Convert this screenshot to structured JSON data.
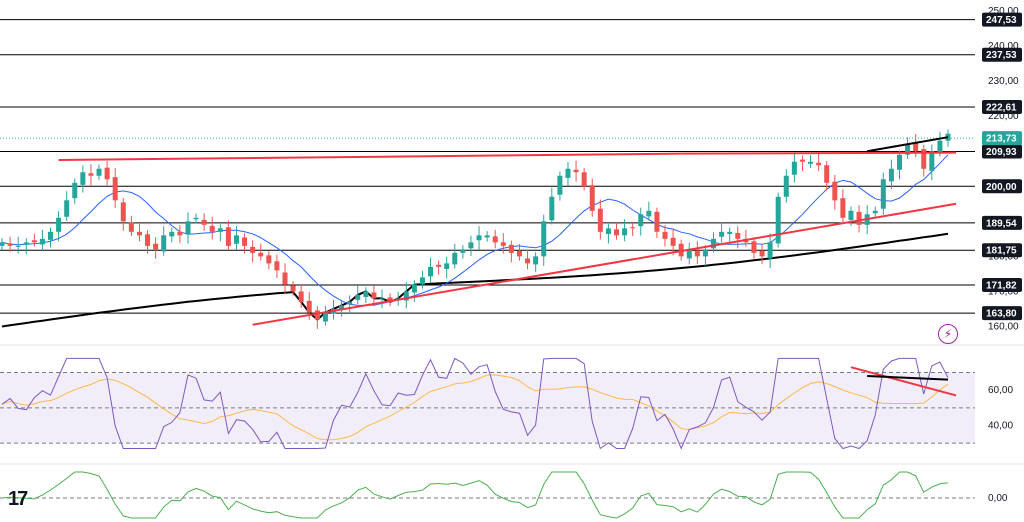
{
  "chart_data": {
    "type": "candlestick",
    "price_panel": {
      "ylim": [
        155,
        252
      ],
      "y_ticks": [
        "250,00",
        "240,00",
        "230,00",
        "220,00",
        "210,00",
        "200,00",
        "190,00",
        "180,00",
        "170,00",
        "160,00"
      ],
      "levels": [
        {
          "value": 247.53,
          "label": "247,53",
          "color": "#000000"
        },
        {
          "value": 237.53,
          "label": "237,53",
          "color": "#000000"
        },
        {
          "value": 222.61,
          "label": "222,61",
          "color": "#000000"
        },
        {
          "value": 209.93,
          "label": "209,93",
          "color": "#000000"
        },
        {
          "value": 200.0,
          "label": "200,00",
          "color": "#000000"
        },
        {
          "value": 189.54,
          "label": "189,54",
          "color": "#000000"
        },
        {
          "value": 181.75,
          "label": "181,75",
          "color": "#000000"
        },
        {
          "value": 171.82,
          "label": "171,82",
          "color": "#000000"
        },
        {
          "value": 163.8,
          "label": "163,80",
          "color": "#000000"
        }
      ],
      "last_price": {
        "value": 213.73,
        "label": "213,73",
        "color": "#26a69a"
      },
      "closes": [
        184,
        183,
        183,
        184,
        184,
        185,
        187,
        191,
        196,
        201,
        204,
        203,
        205,
        202,
        196,
        190,
        187,
        186,
        183,
        182,
        186,
        187,
        186,
        190,
        191,
        189,
        187,
        188,
        183,
        186,
        183,
        181,
        180,
        178,
        176,
        172,
        170,
        167,
        164,
        162,
        164,
        165,
        166,
        167,
        169,
        170,
        168,
        168,
        167,
        168,
        170,
        172,
        174,
        177,
        177,
        178,
        181,
        182,
        184,
        186,
        186,
        184,
        183,
        181,
        180,
        178,
        180,
        190,
        197,
        203,
        205,
        204,
        200,
        193,
        187,
        188,
        186,
        188,
        188,
        192,
        193,
        187,
        185,
        183,
        180,
        182,
        180,
        182,
        185,
        187,
        187,
        185,
        184,
        181,
        180,
        184,
        197,
        203,
        207,
        207,
        207,
        206,
        201,
        196,
        191,
        193,
        189,
        192,
        193,
        202,
        205,
        209,
        212,
        210,
        205,
        210,
        213,
        215
      ],
      "trendlines": [
        {
          "from": [
            7,
            207.5
          ],
          "to": [
            84,
            209.3
          ],
          "color": "#f23645"
        },
        {
          "from": [
            84,
            209.3
          ],
          "to": [
            118,
            209.6
          ],
          "color": "#f23645"
        },
        {
          "from": [
            31,
            160.5
          ],
          "to": [
            118,
            195
          ],
          "color": "#f23645"
        },
        {
          "from": [
            107,
            210
          ],
          "to": [
            117,
            214
          ],
          "color": "#000000"
        }
      ],
      "ma_short_color": "#2962ff",
      "ma_long_color": "#000000"
    },
    "rsi_panel": {
      "y_ticks": [
        "60,00",
        "40,00"
      ],
      "ylim": [
        25,
        85
      ],
      "band": [
        30,
        70
      ],
      "rsi_color": "#7e57c2",
      "signal_color": "#ffb74d",
      "trendlines": [
        {
          "from": [
            105,
            73
          ],
          "to": [
            118,
            57
          ],
          "color": "#f23645"
        },
        {
          "from": [
            107,
            68
          ],
          "to": [
            117,
            66
          ],
          "color": "#000000"
        }
      ]
    },
    "osc_panel": {
      "y_ticks": [
        "0,00"
      ],
      "color": "#4caf50"
    }
  },
  "icons": {
    "logo": "tradingview-logo",
    "alert": "lightning-icon"
  }
}
